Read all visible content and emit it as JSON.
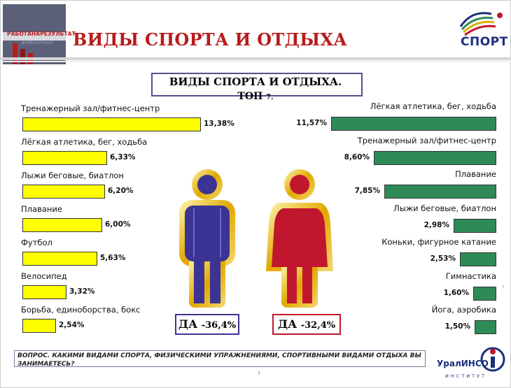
{
  "header": {
    "logo_text": "РАБОТАНАРЕЗУЛЬТАТ",
    "logo_subtext": "workonresult",
    "title": "ВИДЫ СПОРТА И ОТДЫХА",
    "sport_logo_text": "СПОРТ"
  },
  "slide": {
    "title_line1": "ВИДЫ СПОРТА И ОТДЫХА.",
    "title_line2": "ТОП",
    "title_suffix": "7.",
    "page_number": "7"
  },
  "colors": {
    "men_bar": "#ffff00",
    "women_bar": "#2e8b57",
    "male_figure": "#3b3494",
    "female_figure": "#c0172e",
    "male_box_border": "#3b3494",
    "female_box_border": "#c0172e",
    "accent": "#b71c1c"
  },
  "men": {
    "summary_label": "ДА",
    "summary_value": "-36,4%",
    "items": [
      {
        "label": "Тренажерный зал/фитнес-центр",
        "value": 13.38,
        "value_label": "13,38%"
      },
      {
        "label": "Лёгкая атлетика, бег, ходьба",
        "value": 6.33,
        "value_label": "6,33%"
      },
      {
        "label": "Лыжи беговые, биатлон",
        "value": 6.2,
        "value_label": "6,20%"
      },
      {
        "label": "Плавание",
        "value": 6.0,
        "value_label": "6,00%"
      },
      {
        "label": "Футбол",
        "value": 5.63,
        "value_label": "5,63%"
      },
      {
        "label": "Велосипед",
        "value": 3.32,
        "value_label": "3,32%"
      },
      {
        "label": "Борьба, единоборства, бокс",
        "value": 2.54,
        "value_label": "2,54%"
      }
    ]
  },
  "women": {
    "summary_label": "ДА",
    "summary_value": "-32,4%",
    "items": [
      {
        "label": "Лёгкая атлетика, бег, ходьба",
        "value": 11.57,
        "value_label": "11,57%"
      },
      {
        "label": "Тренажерный зал/фитнес-центр",
        "value": 8.6,
        "value_label": "8,60%"
      },
      {
        "label": "Плавание",
        "value": 7.85,
        "value_label": "7,85%"
      },
      {
        "label": "Лыжи беговые, биатлон",
        "value": 2.98,
        "value_label": "2,98%"
      },
      {
        "label": "Коньки, фигурное катание",
        "value": 2.53,
        "value_label": "2,53%"
      },
      {
        "label": "Гимнастика",
        "value": 1.6,
        "value_label": "1,60%"
      },
      {
        "label": "Йога, аэробика",
        "value": 1.5,
        "value_label": "1,50%"
      }
    ]
  },
  "question": {
    "label": "ВОПРОС.",
    "text": "КАКИМИ ВИДАМИ СПОРТА, ФИЗИЧЕСКИМИ УПРАЖНЕНИЯМИ, СПОРТИВНЫМИ ВИДАМИ ОТДЫХА ВЫ ЗАНИМАЕТЕСЬ?"
  },
  "footer": {
    "org_name": "УралИНСО",
    "org_sub": "ИНСТИТУТ",
    "next_icon": "chevron-right-icon"
  }
}
